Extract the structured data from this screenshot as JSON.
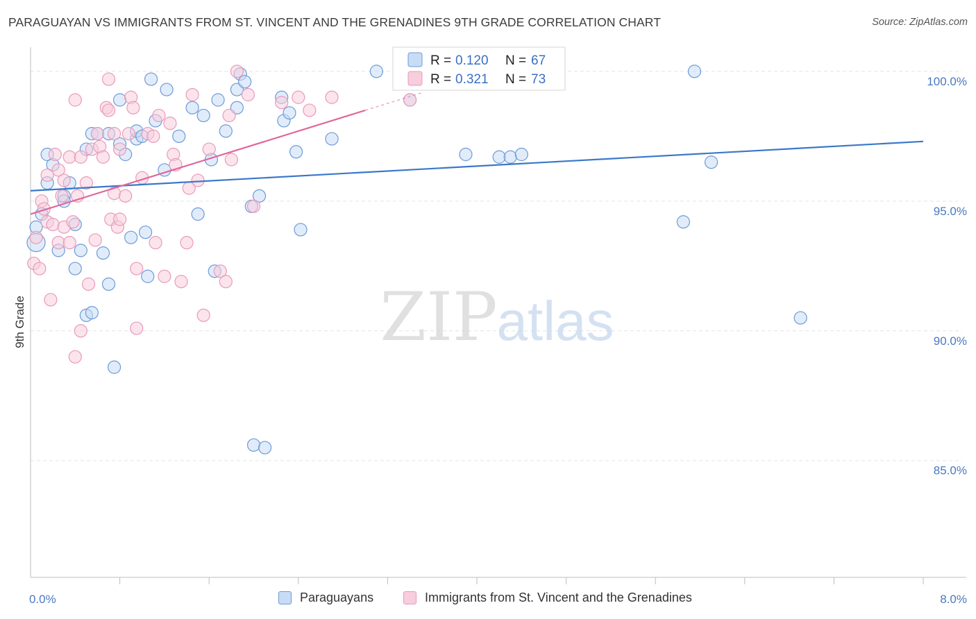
{
  "title": "PARAGUAYAN VS IMMIGRANTS FROM ST. VINCENT AND THE GRENADINES 9TH GRADE CORRELATION CHART",
  "source": "Source: ZipAtlas.com",
  "watermark": {
    "zip": "ZIP",
    "atlas": "atlas"
  },
  "colors": {
    "blue": "#3a78c9",
    "blue_fill": "#c9dcf5",
    "pink": "#e0679a",
    "pink_fill": "#f8cddd",
    "grid": "#e4e4e4",
    "axis_text": "#4a78c0"
  },
  "legend": {
    "r_label": "R =",
    "n_label": "N =",
    "series1": {
      "r": "0.120",
      "n": "67"
    },
    "series2": {
      "r": "0.321",
      "n": "73"
    }
  },
  "bottom_legend": {
    "series1": "Paraguayans",
    "series2": "Immigrants from St. Vincent and the Grenadines"
  },
  "chart_data": {
    "type": "scatter",
    "title": "PARAGUAYAN VS IMMIGRANTS FROM ST. VINCENT AND THE GRENADINES 9TH GRADE CORRELATION CHART",
    "xlabel": "",
    "ylabel": "9th Grade",
    "xlim": [
      0,
      8
    ],
    "ylim": [
      80.5,
      101.2
    ],
    "x_tick_labels": [
      {
        "value": 0,
        "label": "0.0%"
      },
      {
        "value": 8,
        "label": "8.0%"
      }
    ],
    "y_tick_labels": [
      {
        "value": 100,
        "label": "100.0%"
      },
      {
        "value": 95,
        "label": "95.0%"
      },
      {
        "value": 90,
        "label": "90.0%"
      },
      {
        "value": 85,
        "label": "85.0%"
      }
    ],
    "y_grid": [
      100,
      95,
      90,
      85
    ],
    "x_minor_ticks": [
      0.8,
      1.6,
      2.4,
      3.2,
      4.0,
      4.8,
      5.6,
      6.4,
      7.2
    ],
    "series": [
      {
        "name": "Paraguayans",
        "color": "#3a78c9",
        "trend": {
          "x0": 0,
          "y0": 95.4,
          "x1": 8,
          "y1": 97.3
        },
        "points": [
          [
            0.05,
            93.4
          ],
          [
            0.05,
            94.0
          ],
          [
            0.1,
            94.5
          ],
          [
            0.15,
            96.8
          ],
          [
            0.15,
            95.7
          ],
          [
            0.2,
            96.4
          ],
          [
            0.25,
            93.1
          ],
          [
            0.3,
            95.2
          ],
          [
            0.3,
            95.0
          ],
          [
            0.35,
            95.7
          ],
          [
            0.4,
            92.4
          ],
          [
            0.4,
            94.1
          ],
          [
            0.45,
            93.1
          ],
          [
            0.5,
            90.6
          ],
          [
            0.55,
            90.7
          ],
          [
            0.5,
            97.0
          ],
          [
            0.55,
            97.6
          ],
          [
            0.6,
            97.6
          ],
          [
            0.65,
            93.0
          ],
          [
            0.7,
            97.6
          ],
          [
            0.7,
            91.8
          ],
          [
            0.75,
            88.6
          ],
          [
            0.8,
            98.9
          ],
          [
            0.8,
            97.2
          ],
          [
            0.85,
            96.8
          ],
          [
            0.9,
            93.6
          ],
          [
            0.95,
            97.4
          ],
          [
            0.95,
            97.7
          ],
          [
            1.0,
            97.5
          ],
          [
            1.03,
            93.8
          ],
          [
            1.05,
            92.1
          ],
          [
            1.08,
            99.7
          ],
          [
            1.12,
            98.1
          ],
          [
            1.2,
            96.2
          ],
          [
            1.22,
            99.3
          ],
          [
            1.33,
            97.5
          ],
          [
            1.45,
            98.6
          ],
          [
            1.5,
            94.5
          ],
          [
            1.55,
            98.3
          ],
          [
            1.62,
            96.6
          ],
          [
            1.65,
            92.3
          ],
          [
            1.68,
            98.9
          ],
          [
            1.75,
            97.7
          ],
          [
            1.85,
            99.3
          ],
          [
            1.85,
            98.6
          ],
          [
            1.88,
            99.9
          ],
          [
            1.92,
            99.6
          ],
          [
            1.98,
            94.8
          ],
          [
            2.05,
            95.2
          ],
          [
            2.0,
            85.6
          ],
          [
            2.1,
            85.5
          ],
          [
            2.25,
            99.0
          ],
          [
            2.27,
            98.1
          ],
          [
            2.32,
            98.4
          ],
          [
            2.38,
            96.9
          ],
          [
            2.42,
            93.9
          ],
          [
            2.7,
            97.4
          ],
          [
            3.1,
            100.0
          ],
          [
            3.4,
            98.9
          ],
          [
            3.9,
            96.8
          ],
          [
            4.2,
            96.7
          ],
          [
            4.3,
            96.7
          ],
          [
            4.4,
            96.8
          ],
          [
            5.85,
            94.2
          ],
          [
            5.95,
            100.0
          ],
          [
            6.1,
            96.5
          ],
          [
            6.9,
            90.5
          ]
        ]
      },
      {
        "name": "Immigrants from St. Vincent and the Grenadines",
        "color": "#e0679a",
        "trend": {
          "x0": 0,
          "y0": 94.5,
          "x1": 3.0,
          "y1": 98.5
        },
        "points": [
          [
            0.03,
            92.6
          ],
          [
            0.05,
            93.6
          ],
          [
            0.08,
            92.4
          ],
          [
            0.1,
            95.0
          ],
          [
            0.12,
            94.7
          ],
          [
            0.15,
            94.2
          ],
          [
            0.15,
            96.0
          ],
          [
            0.18,
            91.2
          ],
          [
            0.2,
            94.1
          ],
          [
            0.22,
            96.8
          ],
          [
            0.25,
            96.2
          ],
          [
            0.25,
            93.4
          ],
          [
            0.28,
            95.2
          ],
          [
            0.3,
            95.8
          ],
          [
            0.3,
            94.0
          ],
          [
            0.35,
            96.7
          ],
          [
            0.35,
            93.4
          ],
          [
            0.38,
            94.2
          ],
          [
            0.4,
            89.0
          ],
          [
            0.4,
            98.9
          ],
          [
            0.42,
            95.2
          ],
          [
            0.45,
            96.7
          ],
          [
            0.45,
            90.0
          ],
          [
            0.5,
            95.7
          ],
          [
            0.52,
            91.8
          ],
          [
            0.55,
            97.0
          ],
          [
            0.58,
            93.5
          ],
          [
            0.6,
            97.6
          ],
          [
            0.62,
            97.1
          ],
          [
            0.65,
            96.7
          ],
          [
            0.68,
            98.6
          ],
          [
            0.7,
            98.5
          ],
          [
            0.7,
            99.7
          ],
          [
            0.72,
            94.3
          ],
          [
            0.75,
            97.6
          ],
          [
            0.75,
            95.3
          ],
          [
            0.78,
            94.0
          ],
          [
            0.8,
            94.3
          ],
          [
            0.8,
            97.0
          ],
          [
            0.85,
            95.2
          ],
          [
            0.88,
            97.6
          ],
          [
            0.9,
            99.0
          ],
          [
            0.92,
            98.6
          ],
          [
            0.95,
            92.4
          ],
          [
            0.95,
            90.1
          ],
          [
            1.0,
            95.9
          ],
          [
            1.05,
            97.6
          ],
          [
            1.1,
            97.5
          ],
          [
            1.12,
            93.4
          ],
          [
            1.15,
            98.3
          ],
          [
            1.2,
            92.1
          ],
          [
            1.25,
            98.0
          ],
          [
            1.28,
            96.8
          ],
          [
            1.3,
            96.4
          ],
          [
            1.35,
            91.9
          ],
          [
            1.4,
            93.4
          ],
          [
            1.42,
            95.5
          ],
          [
            1.45,
            99.1
          ],
          [
            1.5,
            95.8
          ],
          [
            1.55,
            90.6
          ],
          [
            1.6,
            97.0
          ],
          [
            1.7,
            92.3
          ],
          [
            1.75,
            91.9
          ],
          [
            1.78,
            98.3
          ],
          [
            1.8,
            96.6
          ],
          [
            1.85,
            100.0
          ],
          [
            1.95,
            99.1
          ],
          [
            2.0,
            94.8
          ],
          [
            2.25,
            98.8
          ],
          [
            2.4,
            99.0
          ],
          [
            2.5,
            98.5
          ],
          [
            2.7,
            99.0
          ],
          [
            3.4,
            98.9
          ]
        ]
      }
    ]
  }
}
